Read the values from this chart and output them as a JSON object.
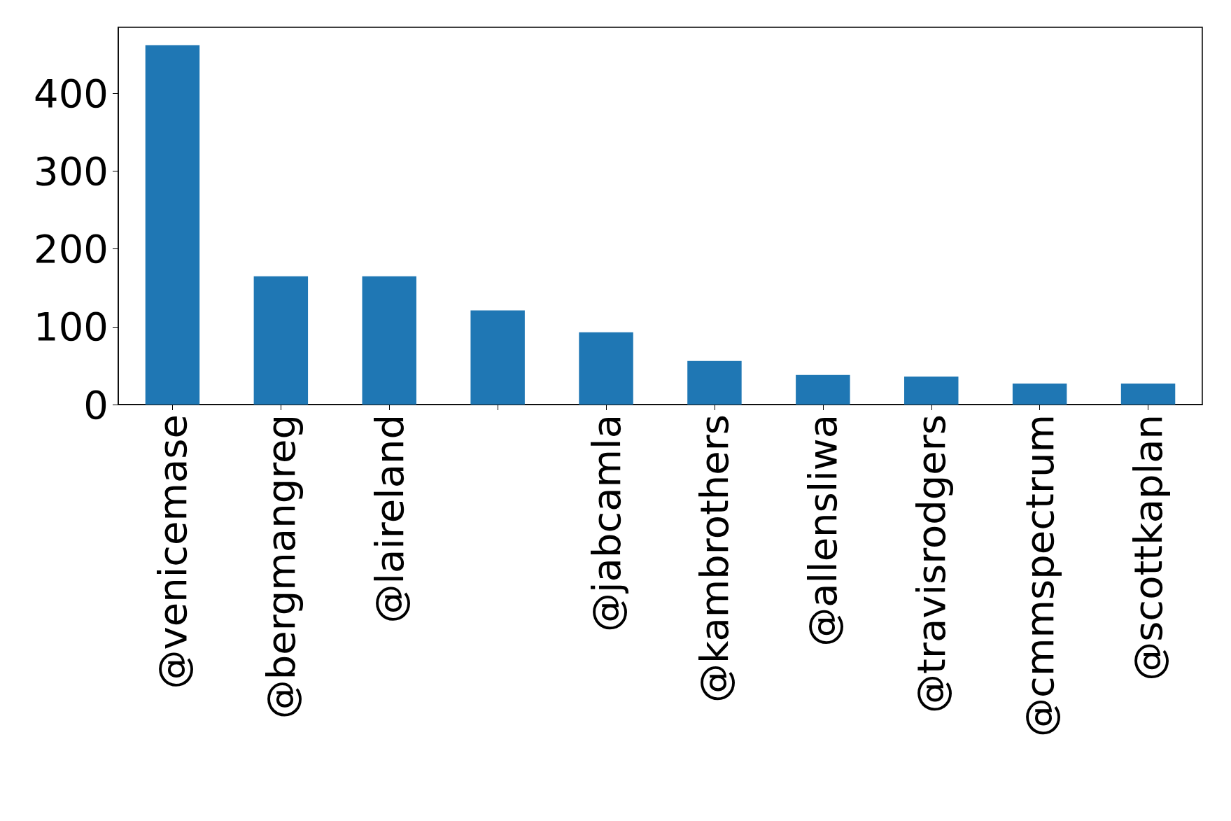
{
  "chart_data": {
    "type": "bar",
    "categories": [
      "@venicemase",
      "@bergmangreg",
      "@laireland",
      null,
      "@jabcamla",
      "@kambrothers",
      "@allensliwa",
      "@travisrodgers",
      "@cmmspectrum",
      "@scottkaplan"
    ],
    "values": [
      462,
      165,
      165,
      121,
      93,
      56,
      38,
      36,
      27,
      27
    ],
    "color": "#1f77b4",
    "ylim": [
      0,
      485
    ],
    "yticks": [
      0,
      100,
      200,
      300,
      400
    ],
    "grid": false
  }
}
